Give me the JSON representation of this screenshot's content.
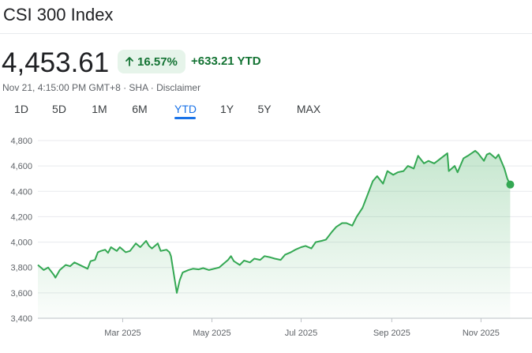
{
  "header": {
    "title": "CSI 300 Index"
  },
  "quote": {
    "price": "4,453.61",
    "change_pct": "16.57%",
    "change_abs": "+633.21 YTD",
    "meta": "Nov 21, 4:15:00 PM GMT+8 · SHA · Disclaimer"
  },
  "icons": {
    "change_arrow": "arrow-up-icon"
  },
  "colors": {
    "accent": "#1a73e8",
    "positive": "#137333",
    "line": "#34a853",
    "badge_bg": "#e6f4ea"
  },
  "tabs": [
    {
      "label": "1D",
      "active": false
    },
    {
      "label": "5D",
      "active": false
    },
    {
      "label": "1M",
      "active": false
    },
    {
      "label": "6M",
      "active": false
    },
    {
      "label": "YTD",
      "active": true
    },
    {
      "label": "1Y",
      "active": false
    },
    {
      "label": "5Y",
      "active": false
    },
    {
      "label": "MAX",
      "active": false
    }
  ],
  "chart_data": {
    "type": "area",
    "title": "",
    "xlabel": "",
    "ylabel": "",
    "ylim": [
      3400,
      4800
    ],
    "yticks": [
      3400,
      3600,
      3800,
      4000,
      4200,
      4400,
      4600,
      4800
    ],
    "ytick_labels": [
      "3,400",
      "3,600",
      "3,800",
      "4,000",
      "4,200",
      "4,400",
      "4,600",
      "4,800"
    ],
    "xlim": [
      "2025-01-02",
      "2025-11-24"
    ],
    "xticks": [
      "2025-03-01",
      "2025-05-01",
      "2025-07-01",
      "2025-09-01",
      "2025-11-01"
    ],
    "xtick_labels": [
      "Mar 2025",
      "May 2025",
      "Jul 2025",
      "Sep 2025",
      "Nov 2025"
    ],
    "grid": true,
    "legend": "none",
    "series": [
      {
        "x": [
          "2025-01-02",
          "2025-01-06",
          "2025-01-09",
          "2025-01-13",
          "2025-01-14",
          "2025-01-17",
          "2025-01-21",
          "2025-01-24",
          "2025-01-27",
          "2025-02-05",
          "2025-02-07",
          "2025-02-10",
          "2025-02-12",
          "2025-02-14",
          "2025-02-17",
          "2025-02-19",
          "2025-02-21",
          "2025-02-25",
          "2025-02-27",
          "2025-03-03",
          "2025-03-06",
          "2025-03-10",
          "2025-03-13",
          "2025-03-17",
          "2025-03-19",
          "2025-03-21",
          "2025-03-25",
          "2025-03-27",
          "2025-03-31",
          "2025-04-02",
          "2025-04-03",
          "2025-04-07",
          "2025-04-09",
          "2025-04-11",
          "2025-04-15",
          "2025-04-18",
          "2025-04-22",
          "2025-04-25",
          "2025-04-29",
          "2025-05-06",
          "2025-05-08",
          "2025-05-12",
          "2025-05-14",
          "2025-05-16",
          "2025-05-20",
          "2025-05-23",
          "2025-05-27",
          "2025-05-30",
          "2025-06-03",
          "2025-06-06",
          "2025-06-10",
          "2025-06-13",
          "2025-06-17",
          "2025-06-20",
          "2025-06-24",
          "2025-06-27",
          "2025-07-01",
          "2025-07-04",
          "2025-07-08",
          "2025-07-11",
          "2025-07-15",
          "2025-07-18",
          "2025-07-22",
          "2025-07-25",
          "2025-07-29",
          "2025-08-01",
          "2025-08-05",
          "2025-08-08",
          "2025-08-12",
          "2025-08-15",
          "2025-08-19",
          "2025-08-22",
          "2025-08-26",
          "2025-08-29",
          "2025-09-02",
          "2025-09-05",
          "2025-09-09",
          "2025-09-12",
          "2025-09-16",
          "2025-09-19",
          "2025-09-23",
          "2025-09-26",
          "2025-09-30",
          "2025-10-09",
          "2025-10-10",
          "2025-10-14",
          "2025-10-16",
          "2025-10-20",
          "2025-10-23",
          "2025-10-28",
          "2025-10-30",
          "2025-11-03",
          "2025-11-05",
          "2025-11-07",
          "2025-11-11",
          "2025-11-13",
          "2025-11-17",
          "2025-11-19",
          "2025-11-21"
        ],
        "y": [
          3820,
          3780,
          3800,
          3740,
          3720,
          3780,
          3820,
          3810,
          3840,
          3790,
          3850,
          3860,
          3920,
          3930,
          3940,
          3915,
          3960,
          3930,
          3960,
          3920,
          3930,
          3990,
          3960,
          4010,
          3970,
          3950,
          3990,
          3930,
          3940,
          3920,
          3890,
          3600,
          3700,
          3760,
          3780,
          3790,
          3785,
          3795,
          3780,
          3800,
          3820,
          3860,
          3890,
          3850,
          3820,
          3855,
          3840,
          3870,
          3860,
          3890,
          3880,
          3870,
          3860,
          3900,
          3920,
          3940,
          3960,
          3970,
          3950,
          4000,
          4010,
          4020,
          4080,
          4120,
          4150,
          4150,
          4130,
          4200,
          4270,
          4360,
          4480,
          4520,
          4460,
          4560,
          4530,
          4550,
          4560,
          4600,
          4580,
          4680,
          4620,
          4640,
          4620,
          4700,
          4560,
          4600,
          4550,
          4660,
          4680,
          4720,
          4700,
          4640,
          4690,
          4700,
          4660,
          4690,
          4580,
          4500,
          4453
        ]
      }
    ],
    "last_point": {
      "x": "2025-11-21",
      "y": 4453.61
    }
  }
}
